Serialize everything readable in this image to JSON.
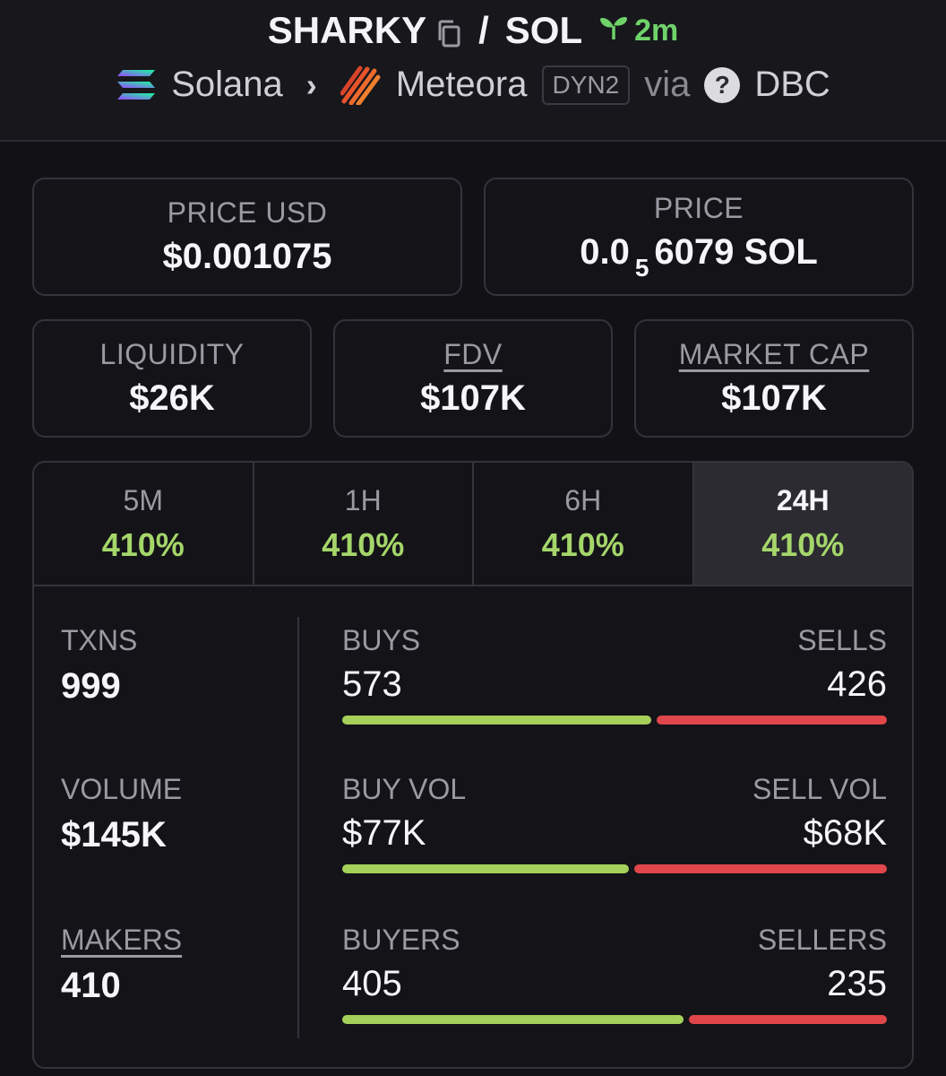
{
  "header": {
    "token": "SHARKY",
    "slash": "/",
    "quote": "SOL",
    "age": "2m",
    "chain": "Solana",
    "dex": "Meteora",
    "pool_type": "DYN2",
    "via": "via",
    "source": "DBC"
  },
  "price_usd": {
    "label": "PRICE USD",
    "value": "$0.001075"
  },
  "price_native": {
    "label": "PRICE",
    "lead": "0.0",
    "zeros": "5",
    "tail": "6079 SOL"
  },
  "liquidity": {
    "label": "LIQUIDITY",
    "value": "$26K"
  },
  "fdv": {
    "label": "FDV",
    "value": "$107K"
  },
  "market_cap": {
    "label": "MARKET CAP",
    "value": "$107K"
  },
  "tabs": [
    {
      "label": "5M",
      "value": "410%"
    },
    {
      "label": "1H",
      "value": "410%"
    },
    {
      "label": "6H",
      "value": "410%"
    },
    {
      "label": "24H",
      "value": "410%"
    }
  ],
  "active_tab": "24H",
  "stats": {
    "txns": {
      "label": "TXNS",
      "value": "999"
    },
    "volume": {
      "label": "VOLUME",
      "value": "$145K"
    },
    "makers": {
      "label": "MAKERS",
      "value": "410"
    },
    "buys": {
      "label": "BUYS",
      "value": "573"
    },
    "sells": {
      "label": "SELLS",
      "value": "426"
    },
    "buy_vol": {
      "label": "BUY VOL",
      "value": "$77K"
    },
    "sell_vol": {
      "label": "SELL VOL",
      "value": "$68K"
    },
    "buyers": {
      "label": "BUYERS",
      "value": "405"
    },
    "sellers": {
      "label": "SELLERS",
      "value": "235"
    }
  },
  "bars": {
    "buys_fraction": 0.5736,
    "buy_vol_fraction": 0.531,
    "buyers_fraction": 0.6328
  },
  "colors": {
    "positive": "#a5d05a",
    "negative": "#e0464a",
    "age_green": "#6fd36a"
  }
}
